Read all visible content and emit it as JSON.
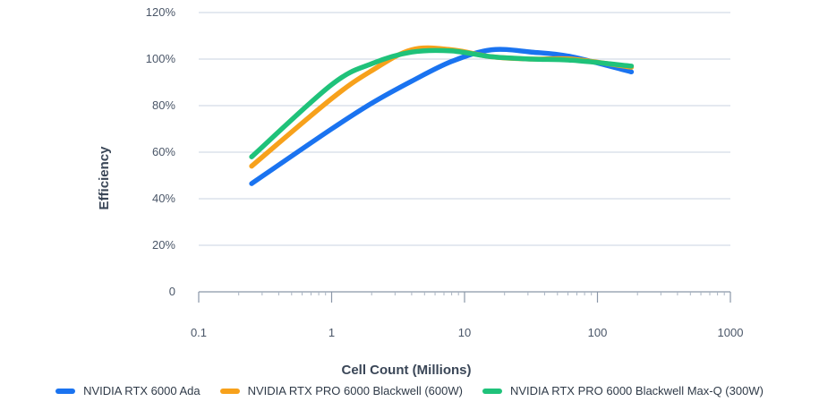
{
  "chart_data": {
    "type": "line",
    "xscale": "log",
    "xlabel": "Cell Count (Millions)",
    "ylabel": "Efficiency",
    "xlim": [
      0.1,
      1000
    ],
    "ylim": [
      0,
      120
    ],
    "xticks": [
      0.1,
      1,
      10,
      100,
      1000
    ],
    "xtick_labels": [
      "0.1",
      "1",
      "10",
      "100",
      "1000"
    ],
    "yticks": [
      0,
      20,
      40,
      60,
      80,
      100,
      120
    ],
    "ytick_labels": [
      "0",
      "20%",
      "40%",
      "60%",
      "80%",
      "100%",
      "120%"
    ],
    "grid": true,
    "legend_position": "bottom",
    "series": [
      {
        "name": "NVIDIA RTX 6000 Ada",
        "color": "#1a73f0",
        "x": [
          0.25,
          1,
          2,
          4,
          8,
          16,
          32,
          64,
          180
        ],
        "y": [
          46.5,
          70,
          81,
          90.5,
          99,
          104,
          103,
          101,
          94.5
        ]
      },
      {
        "name": "NVIDIA RTX PRO 6000 Blackwell (600W)",
        "color": "#f7a11b",
        "x": [
          0.25,
          1,
          2,
          4,
          8,
          16,
          32,
          64,
          180
        ],
        "y": [
          54,
          83,
          95,
          104,
          104,
          101,
          100,
          100,
          96.5
        ]
      },
      {
        "name": "NVIDIA RTX PRO 6000 Blackwell Max-Q (300W)",
        "color": "#1fc27a",
        "x": [
          0.25,
          1,
          2,
          4,
          8,
          16,
          32,
          64,
          180
        ],
        "y": [
          58,
          89,
          98,
          103,
          103.5,
          101,
          100,
          99.5,
          97
        ]
      }
    ]
  }
}
